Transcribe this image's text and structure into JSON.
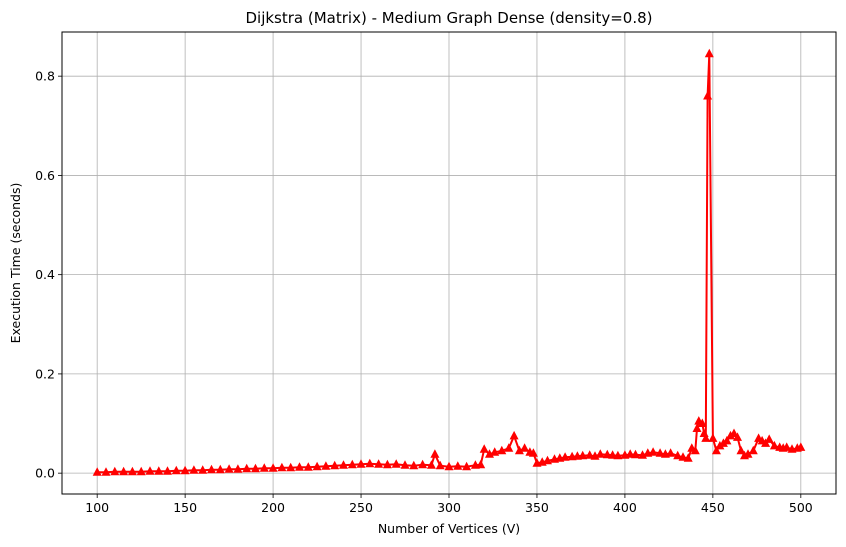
{
  "chart_data": {
    "type": "line",
    "title": "Dijkstra (Matrix) - Medium Graph Dense (density=0.8)",
    "xlabel": "Number of Vertices (V)",
    "ylabel": "Execution Time (seconds)",
    "xlim": [
      80,
      520
    ],
    "ylim": [
      -0.042,
      0.889
    ],
    "xticks": [
      100,
      150,
      200,
      250,
      300,
      350,
      400,
      450,
      500
    ],
    "xtick_labels": [
      "100",
      "150",
      "200",
      "250",
      "300",
      "350",
      "400",
      "450",
      "500"
    ],
    "yticks": [
      0.0,
      0.2,
      0.4,
      0.6,
      0.8
    ],
    "ytick_labels": [
      "0.0",
      "0.2",
      "0.4",
      "0.6",
      "0.8"
    ],
    "grid": true,
    "marker": "triangle-up",
    "color": "#ff0000",
    "series": [
      {
        "x": [
          100,
          105,
          110,
          115,
          120,
          125,
          130,
          135,
          140,
          145,
          150,
          155,
          160,
          165,
          170,
          175,
          180,
          185,
          190,
          195,
          200,
          205,
          210,
          215,
          220,
          225,
          230,
          235,
          240,
          245,
          250,
          255,
          260,
          265,
          270,
          275,
          280,
          285,
          290,
          292,
          295,
          300,
          305,
          310,
          315,
          318,
          320,
          323,
          326,
          330,
          334,
          337,
          340,
          343,
          346,
          348,
          350,
          353,
          356,
          360,
          363,
          366,
          370,
          373,
          376,
          380,
          383,
          386,
          390,
          393,
          396,
          400,
          403,
          406,
          410,
          413,
          416,
          420,
          423,
          426,
          430,
          433,
          436,
          438,
          440,
          441,
          442,
          444,
          445,
          446,
          447,
          448,
          450,
          452,
          454,
          456,
          458,
          460,
          462,
          464,
          466,
          468,
          470,
          473,
          476,
          478,
          480,
          482,
          485,
          488,
          490,
          492,
          495,
          498,
          500
        ],
        "y": [
          0.002,
          0.002,
          0.003,
          0.003,
          0.003,
          0.003,
          0.004,
          0.004,
          0.004,
          0.005,
          0.005,
          0.006,
          0.006,
          0.007,
          0.007,
          0.008,
          0.008,
          0.009,
          0.009,
          0.01,
          0.01,
          0.011,
          0.011,
          0.012,
          0.012,
          0.013,
          0.014,
          0.015,
          0.016,
          0.017,
          0.018,
          0.019,
          0.018,
          0.017,
          0.018,
          0.016,
          0.015,
          0.017,
          0.016,
          0.038,
          0.015,
          0.013,
          0.014,
          0.013,
          0.016,
          0.017,
          0.048,
          0.038,
          0.042,
          0.045,
          0.05,
          0.075,
          0.045,
          0.05,
          0.042,
          0.04,
          0.02,
          0.022,
          0.025,
          0.028,
          0.03,
          0.032,
          0.033,
          0.034,
          0.035,
          0.036,
          0.034,
          0.038,
          0.037,
          0.036,
          0.035,
          0.036,
          0.038,
          0.037,
          0.036,
          0.04,
          0.042,
          0.04,
          0.038,
          0.04,
          0.035,
          0.032,
          0.03,
          0.05,
          0.045,
          0.09,
          0.105,
          0.1,
          0.08,
          0.07,
          0.76,
          0.845,
          0.07,
          0.045,
          0.055,
          0.06,
          0.065,
          0.075,
          0.08,
          0.072,
          0.045,
          0.035,
          0.038,
          0.045,
          0.07,
          0.065,
          0.06,
          0.068,
          0.055,
          0.052,
          0.05,
          0.052,
          0.048,
          0.05,
          0.052
        ]
      }
    ]
  }
}
